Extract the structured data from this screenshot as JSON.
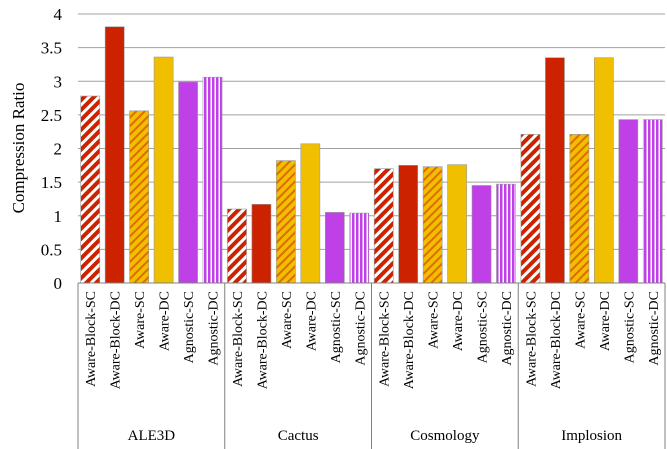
{
  "chart_data": {
    "type": "bar",
    "ylabel": "Compression Ratio",
    "ylim": [
      0,
      4
    ],
    "yticks": [
      "0",
      "0.5",
      "1",
      "1.5",
      "2",
      "2.5",
      "3",
      "3.5",
      "4"
    ],
    "grid": true,
    "groups": [
      {
        "name": "ALE3D",
        "bars": [
          {
            "label": "Aware-Block-SC",
            "value": 2.78,
            "color": "#cc2200",
            "pattern": "hatch-red"
          },
          {
            "label": "Aware-Block-DC",
            "value": 3.81,
            "color": "#cc2200",
            "pattern": "solid"
          },
          {
            "label": "Aware-SC",
            "value": 2.56,
            "color": "#f0c000",
            "pattern": "hatch-yellow"
          },
          {
            "label": "Aware-DC",
            "value": 3.36,
            "color": "#f0c000",
            "pattern": "solid"
          },
          {
            "label": "Agnostic-SC",
            "value": 2.99,
            "color": "#c040e8",
            "pattern": "solid"
          },
          {
            "label": "Agnostic-DC",
            "value": 3.06,
            "color": "#c040e8",
            "pattern": "vstripe"
          }
        ]
      },
      {
        "name": "Cactus",
        "bars": [
          {
            "label": "Aware-Block-SC",
            "value": 1.1,
            "color": "#cc2200",
            "pattern": "hatch-red"
          },
          {
            "label": "Aware-Block-DC",
            "value": 1.17,
            "color": "#cc2200",
            "pattern": "solid"
          },
          {
            "label": "Aware-SC",
            "value": 1.82,
            "color": "#f0c000",
            "pattern": "hatch-yellow"
          },
          {
            "label": "Aware-DC",
            "value": 2.07,
            "color": "#f0c000",
            "pattern": "solid"
          },
          {
            "label": "Agnostic-SC",
            "value": 1.05,
            "color": "#c040e8",
            "pattern": "solid"
          },
          {
            "label": "Agnostic-DC",
            "value": 1.04,
            "color": "#c040e8",
            "pattern": "vstripe"
          }
        ]
      },
      {
        "name": "Cosmology",
        "bars": [
          {
            "label": "Aware-Block-SC",
            "value": 1.7,
            "color": "#cc2200",
            "pattern": "hatch-red"
          },
          {
            "label": "Aware-Block-DC",
            "value": 1.75,
            "color": "#cc2200",
            "pattern": "solid"
          },
          {
            "label": "Aware-SC",
            "value": 1.73,
            "color": "#f0c000",
            "pattern": "hatch-yellow"
          },
          {
            "label": "Aware-DC",
            "value": 1.76,
            "color": "#f0c000",
            "pattern": "solid"
          },
          {
            "label": "Agnostic-SC",
            "value": 1.45,
            "color": "#c040e8",
            "pattern": "solid"
          },
          {
            "label": "Agnostic-DC",
            "value": 1.47,
            "color": "#c040e8",
            "pattern": "vstripe"
          }
        ]
      },
      {
        "name": "Implosion",
        "bars": [
          {
            "label": "Aware-Block-SC",
            "value": 2.21,
            "color": "#cc2200",
            "pattern": "hatch-red"
          },
          {
            "label": "Aware-Block-DC",
            "value": 3.35,
            "color": "#cc2200",
            "pattern": "solid"
          },
          {
            "label": "Aware-SC",
            "value": 2.21,
            "color": "#f0c000",
            "pattern": "hatch-yellow"
          },
          {
            "label": "Aware-DC",
            "value": 3.35,
            "color": "#f0c000",
            "pattern": "solid"
          },
          {
            "label": "Agnostic-SC",
            "value": 2.43,
            "color": "#c040e8",
            "pattern": "solid"
          },
          {
            "label": "Agnostic-DC",
            "value": 2.43,
            "color": "#c040e8",
            "pattern": "vstripe"
          }
        ]
      }
    ]
  }
}
